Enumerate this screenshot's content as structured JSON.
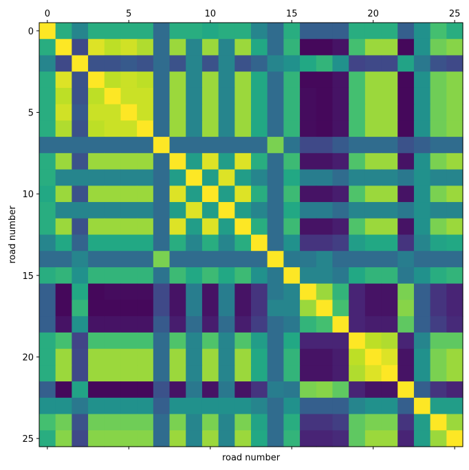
{
  "chart_data": {
    "type": "heatmap",
    "title": "",
    "xlabel": "road number",
    "ylabel": "road number",
    "x_ticks": [
      0,
      5,
      10,
      15,
      20,
      25
    ],
    "y_ticks": [
      0,
      5,
      10,
      15,
      20,
      25
    ],
    "x_tick_position": "top",
    "colormap": "viridis",
    "value_range": [
      0,
      1
    ],
    "n": 26,
    "values": [
      [
        1.0,
        0.62,
        0.45,
        0.62,
        0.62,
        0.62,
        0.62,
        0.35,
        0.62,
        0.62,
        0.6,
        0.62,
        0.62,
        0.45,
        0.35,
        0.62,
        0.3,
        0.3,
        0.3,
        0.62,
        0.62,
        0.62,
        0.3,
        0.5,
        0.7,
        0.62
      ],
      [
        0.62,
        1.0,
        0.22,
        0.95,
        0.9,
        0.93,
        0.88,
        0.35,
        0.85,
        0.45,
        0.85,
        0.45,
        0.85,
        0.6,
        0.35,
        0.65,
        0.02,
        0.02,
        0.05,
        0.7,
        0.85,
        0.85,
        0.02,
        0.5,
        0.78,
        0.82
      ],
      [
        0.45,
        0.22,
        1.0,
        0.25,
        0.25,
        0.28,
        0.25,
        0.35,
        0.25,
        0.45,
        0.25,
        0.45,
        0.25,
        0.32,
        0.45,
        0.5,
        0.6,
        0.65,
        0.5,
        0.2,
        0.22,
        0.22,
        0.58,
        0.4,
        0.25,
        0.22
      ],
      [
        0.62,
        0.95,
        0.25,
        1.0,
        0.9,
        0.92,
        0.9,
        0.35,
        0.85,
        0.45,
        0.85,
        0.45,
        0.85,
        0.6,
        0.35,
        0.65,
        0.02,
        0.02,
        0.05,
        0.7,
        0.85,
        0.85,
        0.02,
        0.5,
        0.78,
        0.82
      ],
      [
        0.62,
        0.9,
        0.25,
        0.9,
        1.0,
        0.92,
        0.92,
        0.35,
        0.85,
        0.45,
        0.85,
        0.45,
        0.85,
        0.6,
        0.35,
        0.65,
        0.03,
        0.02,
        0.05,
        0.7,
        0.85,
        0.85,
        0.02,
        0.5,
        0.78,
        0.82
      ],
      [
        0.62,
        0.93,
        0.28,
        0.92,
        0.92,
        1.0,
        0.92,
        0.35,
        0.85,
        0.45,
        0.85,
        0.45,
        0.85,
        0.6,
        0.35,
        0.65,
        0.03,
        0.02,
        0.05,
        0.7,
        0.85,
        0.85,
        0.02,
        0.5,
        0.78,
        0.82
      ],
      [
        0.62,
        0.88,
        0.25,
        0.9,
        0.92,
        0.92,
        1.0,
        0.35,
        0.85,
        0.45,
        0.85,
        0.45,
        0.85,
        0.6,
        0.35,
        0.65,
        0.03,
        0.02,
        0.05,
        0.7,
        0.85,
        0.85,
        0.02,
        0.5,
        0.78,
        0.82
      ],
      [
        0.35,
        0.35,
        0.35,
        0.35,
        0.35,
        0.35,
        0.35,
        1.0,
        0.35,
        0.35,
        0.35,
        0.35,
        0.35,
        0.35,
        0.8,
        0.38,
        0.22,
        0.22,
        0.28,
        0.35,
        0.35,
        0.35,
        0.25,
        0.3,
        0.35,
        0.35
      ],
      [
        0.62,
        0.85,
        0.25,
        0.85,
        0.85,
        0.85,
        0.85,
        0.35,
        1.0,
        0.55,
        0.95,
        0.55,
        0.95,
        0.62,
        0.35,
        0.68,
        0.05,
        0.05,
        0.08,
        0.72,
        0.85,
        0.85,
        0.05,
        0.5,
        0.8,
        0.85
      ],
      [
        0.62,
        0.45,
        0.45,
        0.45,
        0.45,
        0.45,
        0.45,
        0.35,
        0.55,
        1.0,
        0.55,
        0.95,
        0.55,
        0.45,
        0.35,
        0.6,
        0.42,
        0.42,
        0.35,
        0.45,
        0.45,
        0.45,
        0.4,
        0.5,
        0.45,
        0.45
      ],
      [
        0.6,
        0.85,
        0.25,
        0.85,
        0.85,
        0.85,
        0.85,
        0.35,
        0.95,
        0.55,
        1.0,
        0.55,
        0.95,
        0.62,
        0.35,
        0.68,
        0.05,
        0.05,
        0.08,
        0.72,
        0.85,
        0.85,
        0.05,
        0.5,
        0.8,
        0.85
      ],
      [
        0.62,
        0.45,
        0.45,
        0.45,
        0.45,
        0.45,
        0.45,
        0.35,
        0.55,
        0.95,
        0.55,
        1.0,
        0.55,
        0.45,
        0.35,
        0.6,
        0.42,
        0.42,
        0.35,
        0.45,
        0.45,
        0.45,
        0.4,
        0.5,
        0.45,
        0.45
      ],
      [
        0.62,
        0.85,
        0.25,
        0.85,
        0.85,
        0.85,
        0.85,
        0.35,
        0.95,
        0.55,
        0.95,
        0.55,
        1.0,
        0.62,
        0.35,
        0.68,
        0.05,
        0.05,
        0.08,
        0.72,
        0.85,
        0.85,
        0.05,
        0.5,
        0.8,
        0.85
      ],
      [
        0.45,
        0.6,
        0.32,
        0.6,
        0.6,
        0.6,
        0.6,
        0.35,
        0.62,
        0.45,
        0.62,
        0.45,
        0.62,
        1.0,
        0.35,
        0.5,
        0.15,
        0.15,
        0.18,
        0.55,
        0.6,
        0.6,
        0.15,
        0.45,
        0.58,
        0.6
      ],
      [
        0.35,
        0.35,
        0.45,
        0.35,
        0.35,
        0.35,
        0.35,
        0.8,
        0.35,
        0.35,
        0.35,
        0.35,
        0.35,
        0.35,
        1.0,
        0.4,
        0.4,
        0.45,
        0.35,
        0.35,
        0.35,
        0.35,
        0.42,
        0.35,
        0.35,
        0.35
      ],
      [
        0.62,
        0.65,
        0.5,
        0.65,
        0.65,
        0.65,
        0.65,
        0.38,
        0.68,
        0.6,
        0.68,
        0.6,
        0.68,
        0.5,
        0.4,
        1.0,
        0.45,
        0.45,
        0.4,
        0.6,
        0.65,
        0.65,
        0.4,
        0.5,
        0.62,
        0.65
      ],
      [
        0.3,
        0.02,
        0.6,
        0.02,
        0.03,
        0.03,
        0.03,
        0.22,
        0.05,
        0.42,
        0.05,
        0.42,
        0.05,
        0.15,
        0.4,
        0.45,
        1.0,
        0.85,
        0.65,
        0.1,
        0.05,
        0.05,
        0.8,
        0.3,
        0.15,
        0.1
      ],
      [
        0.3,
        0.02,
        0.65,
        0.02,
        0.02,
        0.02,
        0.02,
        0.22,
        0.05,
        0.42,
        0.05,
        0.42,
        0.05,
        0.15,
        0.45,
        0.45,
        0.85,
        1.0,
        0.7,
        0.1,
        0.05,
        0.05,
        0.82,
        0.3,
        0.15,
        0.1
      ],
      [
        0.3,
        0.05,
        0.5,
        0.05,
        0.05,
        0.05,
        0.05,
        0.28,
        0.08,
        0.35,
        0.08,
        0.35,
        0.08,
        0.18,
        0.35,
        0.4,
        0.65,
        0.7,
        1.0,
        0.1,
        0.08,
        0.08,
        0.75,
        0.3,
        0.18,
        0.12
      ],
      [
        0.62,
        0.7,
        0.2,
        0.7,
        0.7,
        0.7,
        0.7,
        0.35,
        0.72,
        0.45,
        0.72,
        0.45,
        0.72,
        0.55,
        0.35,
        0.6,
        0.1,
        0.1,
        0.1,
        1.0,
        0.9,
        0.88,
        0.1,
        0.45,
        0.75,
        0.75
      ],
      [
        0.62,
        0.85,
        0.22,
        0.85,
        0.85,
        0.85,
        0.85,
        0.35,
        0.85,
        0.45,
        0.85,
        0.45,
        0.85,
        0.6,
        0.35,
        0.65,
        0.05,
        0.05,
        0.08,
        0.9,
        1.0,
        0.95,
        0.05,
        0.5,
        0.8,
        0.85
      ],
      [
        0.62,
        0.85,
        0.22,
        0.85,
        0.85,
        0.85,
        0.85,
        0.35,
        0.85,
        0.45,
        0.85,
        0.45,
        0.85,
        0.6,
        0.35,
        0.65,
        0.05,
        0.05,
        0.08,
        0.88,
        0.95,
        1.0,
        0.05,
        0.5,
        0.8,
        0.85
      ],
      [
        0.3,
        0.02,
        0.58,
        0.02,
        0.02,
        0.02,
        0.02,
        0.25,
        0.05,
        0.4,
        0.05,
        0.4,
        0.05,
        0.15,
        0.42,
        0.4,
        0.8,
        0.82,
        0.75,
        0.1,
        0.05,
        0.05,
        1.0,
        0.3,
        0.15,
        0.1
      ],
      [
        0.5,
        0.5,
        0.4,
        0.5,
        0.5,
        0.5,
        0.5,
        0.3,
        0.5,
        0.5,
        0.5,
        0.5,
        0.5,
        0.45,
        0.35,
        0.5,
        0.3,
        0.3,
        0.3,
        0.45,
        0.5,
        0.5,
        0.3,
        1.0,
        0.55,
        0.55
      ],
      [
        0.7,
        0.78,
        0.25,
        0.78,
        0.78,
        0.78,
        0.78,
        0.35,
        0.8,
        0.45,
        0.8,
        0.45,
        0.8,
        0.58,
        0.35,
        0.62,
        0.15,
        0.15,
        0.18,
        0.75,
        0.8,
        0.8,
        0.15,
        0.55,
        1.0,
        0.85
      ],
      [
        0.62,
        0.82,
        0.22,
        0.82,
        0.82,
        0.82,
        0.82,
        0.35,
        0.85,
        0.45,
        0.85,
        0.45,
        0.85,
        0.6,
        0.35,
        0.65,
        0.1,
        0.1,
        0.12,
        0.75,
        0.85,
        0.85,
        0.1,
        0.55,
        0.85,
        1.0
      ]
    ]
  }
}
